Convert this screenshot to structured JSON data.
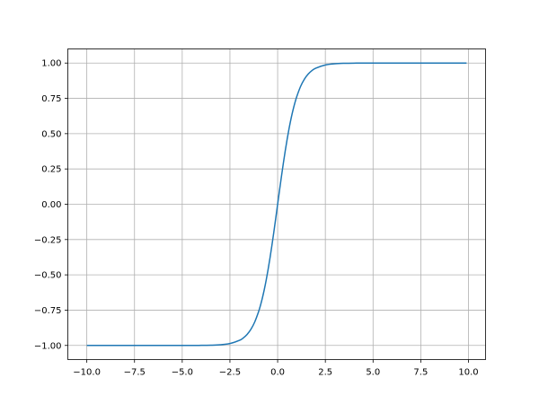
{
  "chart_data": {
    "type": "line",
    "title": "",
    "xlabel": "",
    "ylabel": "",
    "xlim": [
      -10.995,
      10.895
    ],
    "ylim": [
      -1.1,
      1.1
    ],
    "grid": true,
    "xticks": [
      -10.0,
      -7.5,
      -5.0,
      -2.5,
      0.0,
      2.5,
      5.0,
      7.5,
      10.0
    ],
    "xtick_labels": [
      "−10.0",
      "−7.5",
      "−5.0",
      "−2.5",
      "0.0",
      "2.5",
      "5.0",
      "7.5",
      "10.0"
    ],
    "yticks": [
      -1.0,
      -0.75,
      -0.5,
      -0.25,
      0.0,
      0.25,
      0.5,
      0.75,
      1.0
    ],
    "ytick_labels": [
      "−1.00",
      "−0.75",
      "−0.50",
      "−0.25",
      "0.00",
      "0.25",
      "0.50",
      "0.75",
      "1.00"
    ],
    "series": [
      {
        "color": "#1f77b4",
        "x": [
          -10,
          -5,
          -4,
          -3.5,
          -3,
          -2.5,
          -2,
          -1.8,
          -1.6,
          -1.4,
          -1.2,
          -1,
          -0.9,
          -0.8,
          -0.7,
          -0.6,
          -0.5,
          -0.4,
          -0.3,
          -0.2,
          -0.1,
          0,
          0.1,
          0.2,
          0.3,
          0.4,
          0.5,
          0.6,
          0.7,
          0.8,
          0.9,
          1,
          1.2,
          1.4,
          1.6,
          1.8,
          2,
          2.5,
          3,
          3.5,
          4,
          5,
          9.9
        ],
        "y": [
          -1,
          -0.9999,
          -0.9993,
          -0.9982,
          -0.9951,
          -0.9866,
          -0.964,
          -0.9468,
          -0.9217,
          -0.8854,
          -0.8337,
          -0.7616,
          -0.7163,
          -0.664,
          -0.6044,
          -0.537,
          -0.4621,
          -0.3799,
          -0.2913,
          -0.1974,
          -0.0997,
          0,
          0.0997,
          0.1974,
          0.2913,
          0.3799,
          0.4621,
          0.537,
          0.6044,
          0.664,
          0.7163,
          0.7616,
          0.8337,
          0.8854,
          0.9217,
          0.9468,
          0.964,
          0.9866,
          0.9951,
          0.9982,
          0.9993,
          0.9999,
          1
        ]
      }
    ]
  }
}
